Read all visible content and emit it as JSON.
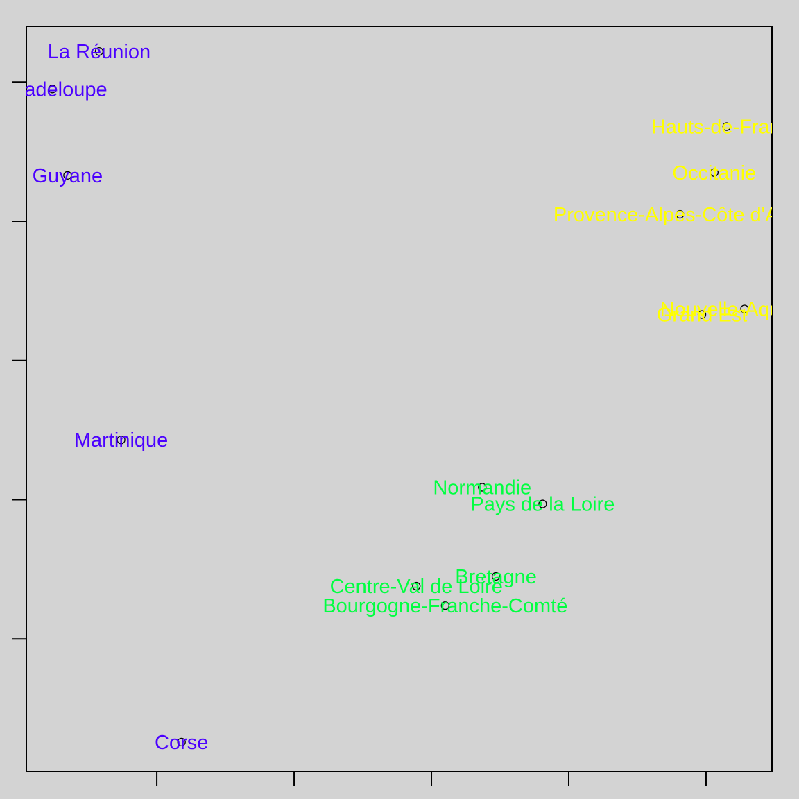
{
  "chart_data": {
    "type": "scatter",
    "title": "",
    "xlabel": "",
    "ylabel": "",
    "xlim": [
      -0.95,
      4.48
    ],
    "ylim": [
      -0.95,
      4.4
    ],
    "xticks": [
      0,
      1,
      2,
      3,
      4
    ],
    "yticks": [
      0,
      1,
      2,
      3,
      4
    ],
    "grid": false,
    "legend": "none",
    "colors": {
      "blue": "#4b00ff",
      "green": "#00ff40",
      "yellow": "#ffff00",
      "point": "#000000",
      "axis": "#000000",
      "background": "#d3d3d3"
    },
    "points": [
      {
        "label": "La Réunion",
        "x": -0.42,
        "y": 4.22,
        "color": "blue"
      },
      {
        "label": "Guadeloupe",
        "x": -0.76,
        "y": 3.95,
        "color": "blue"
      },
      {
        "label": "Guyane",
        "x": -0.65,
        "y": 3.33,
        "color": "blue"
      },
      {
        "label": "Martinique",
        "x": -0.26,
        "y": 1.43,
        "color": "blue"
      },
      {
        "label": "Corse",
        "x": 0.18,
        "y": -0.74,
        "color": "blue"
      },
      {
        "label": "Hauts-de-France",
        "x": 4.15,
        "y": 3.68,
        "color": "yellow"
      },
      {
        "label": "Occitanie",
        "x": 4.06,
        "y": 3.35,
        "color": "yellow"
      },
      {
        "label": "Provence-Alpes-Côte d'Azur",
        "x": 3.81,
        "y": 3.05,
        "color": "yellow"
      },
      {
        "label": "Nouvelle-Aquitaine",
        "x": 4.28,
        "y": 2.37,
        "color": "yellow"
      },
      {
        "label": "Grand Est",
        "x": 3.97,
        "y": 2.33,
        "color": "yellow"
      },
      {
        "label": "Normandie",
        "x": 2.37,
        "y": 1.09,
        "color": "green"
      },
      {
        "label": "Pays de la Loire",
        "x": 2.81,
        "y": 0.97,
        "color": "green"
      },
      {
        "label": "Bretagne",
        "x": 2.47,
        "y": 0.45,
        "color": "green"
      },
      {
        "label": "Centre-Val de Loire",
        "x": 1.89,
        "y": 0.38,
        "color": "green"
      },
      {
        "label": "Bourgogne-Franche-Comté",
        "x": 2.1,
        "y": 0.24,
        "color": "green"
      }
    ]
  }
}
